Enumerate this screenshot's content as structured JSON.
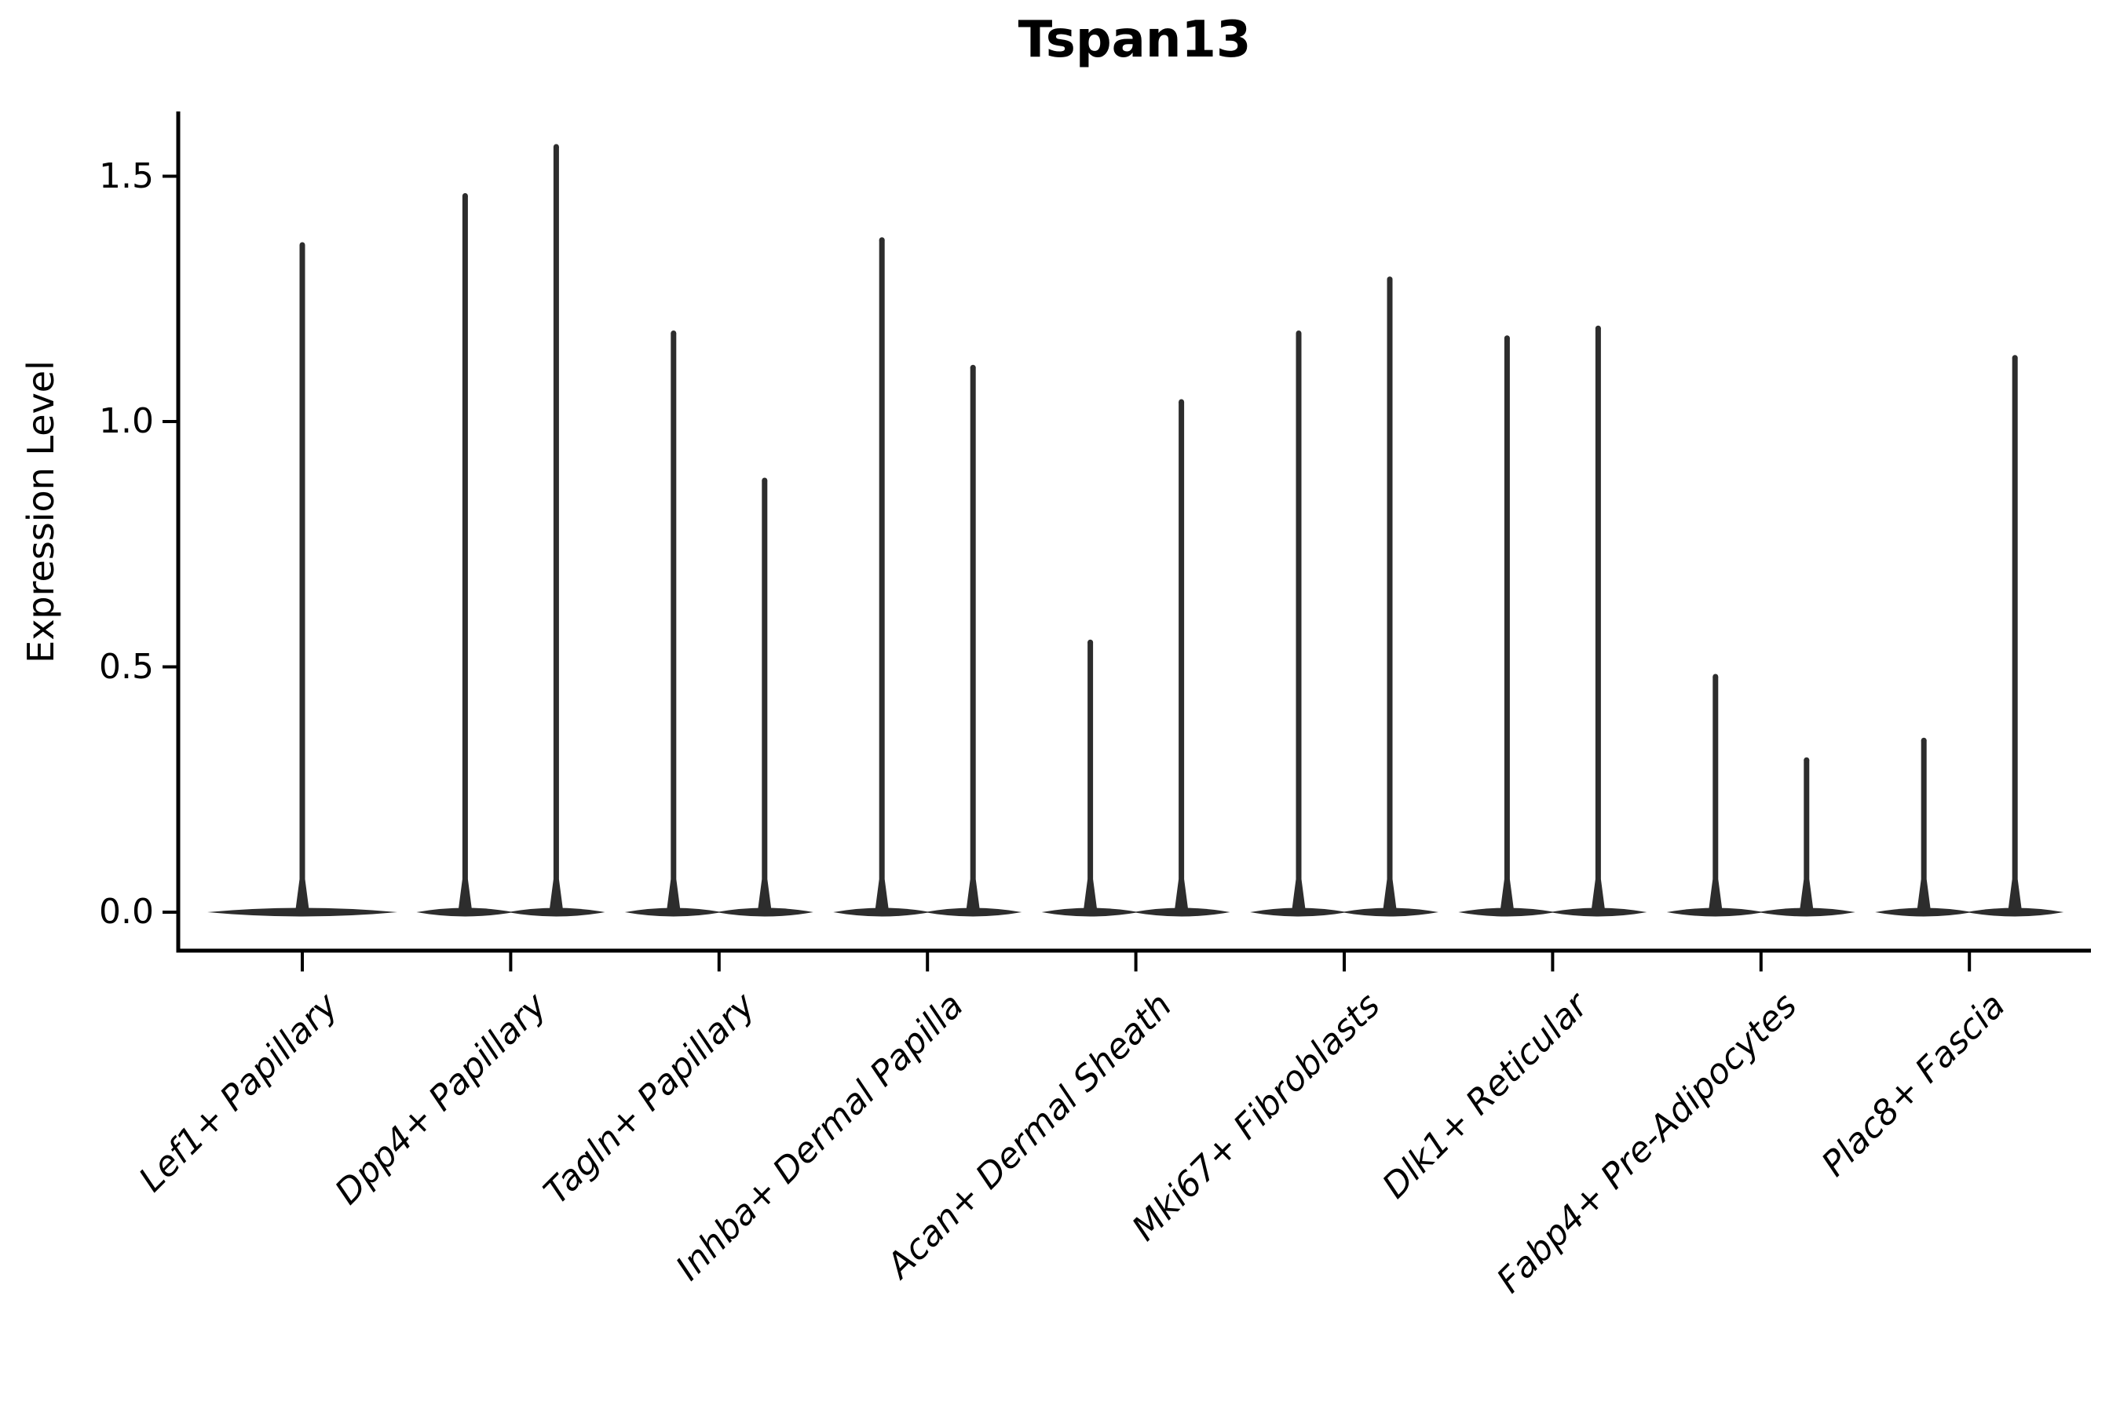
{
  "title": "Tspan13",
  "chart_data": {
    "type": "violin",
    "title": "Tspan13",
    "ylabel": "Expression Level",
    "xlabel": "",
    "ytick_labels": [
      "0.0",
      "0.5",
      "1.0",
      "1.5"
    ],
    "ytick_values": [
      0.0,
      0.5,
      1.0,
      1.5
    ],
    "ylim": [
      -0.08,
      1.63
    ],
    "grid": false,
    "legend": "none",
    "x_tick_rotation_deg": 45,
    "categories": [
      "Lef1+ Papillary",
      "Dpp4+ Papillary",
      "Tagln+ Papillary",
      "Inhba+ Dermal Papilla",
      "Acan+ Dermal Sheath",
      "Mki67+ Fibroblasts",
      "Dlk1+ Reticular",
      "Fabp4+ Pre-Adipocytes",
      "Plac8+ Fascia"
    ],
    "violins": [
      {
        "category": "Lef1+ Papillary",
        "spike_max_values": [
          1.36
        ]
      },
      {
        "category": "Dpp4+ Papillary",
        "spike_max_values": [
          1.46,
          1.56
        ]
      },
      {
        "category": "Tagln+ Papillary",
        "spike_max_values": [
          1.18,
          0.88
        ]
      },
      {
        "category": "Inhba+ Dermal Papilla",
        "spike_max_values": [
          1.37,
          1.11
        ]
      },
      {
        "category": "Acan+ Dermal Sheath",
        "spike_max_values": [
          0.55,
          1.04
        ]
      },
      {
        "category": "Mki67+ Fibroblasts",
        "spike_max_values": [
          1.18,
          1.29
        ]
      },
      {
        "category": "Dlk1+ Reticular",
        "spike_max_values": [
          1.17,
          1.19
        ]
      },
      {
        "category": "Fabp4+ Pre-Adipocytes",
        "spike_max_values": [
          0.48,
          0.31
        ]
      },
      {
        "category": "Plac8+ Fascia",
        "spike_max_values": [
          0.35,
          1.13
        ]
      }
    ],
    "violin_shape_note": "Nearly all density at expression 0: wide flat lens at baseline plus a thin vertical spike reaching the max value",
    "colors": {
      "violin_fill": "#2d2d2d",
      "axis": "#000000",
      "text": "#000000",
      "background": "#ffffff"
    }
  }
}
